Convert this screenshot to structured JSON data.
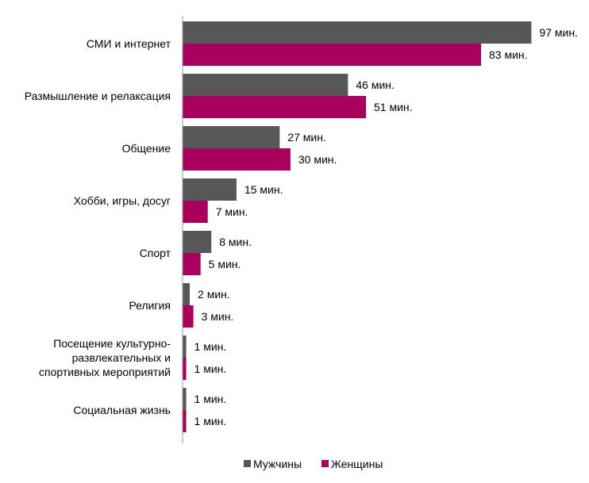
{
  "chart_data": {
    "type": "bar",
    "orientation": "horizontal",
    "categories": [
      "СМИ и интернет",
      "Размышление и релаксация",
      "Общение",
      "Хобби, игры, досуг",
      "Спорт",
      "Религия",
      "Посещение культурно-развлекательных и спортивных мероприятий",
      "Социальная жизнь"
    ],
    "category_label_lines": [
      [
        "СМИ и интернет"
      ],
      [
        "Размышление и релаксация"
      ],
      [
        "Общение"
      ],
      [
        "Хобби, игры, досуг"
      ],
      [
        "Спорт"
      ],
      [
        "Религия"
      ],
      [
        "Посещение культурно-",
        "развлекательных и",
        "спортивных мероприятий"
      ],
      [
        "Социальная жизнь"
      ]
    ],
    "series": [
      {
        "name": "Мужчины",
        "color": "#575757",
        "values": [
          97,
          46,
          27,
          15,
          8,
          2,
          1,
          1
        ]
      },
      {
        "name": "Женщины",
        "color": "#a8005c",
        "values": [
          83,
          51,
          30,
          7,
          5,
          3,
          1,
          1
        ]
      }
    ],
    "value_unit": "мин.",
    "xlim": [
      0,
      100
    ],
    "grid": false,
    "legend_position": "bottom"
  }
}
